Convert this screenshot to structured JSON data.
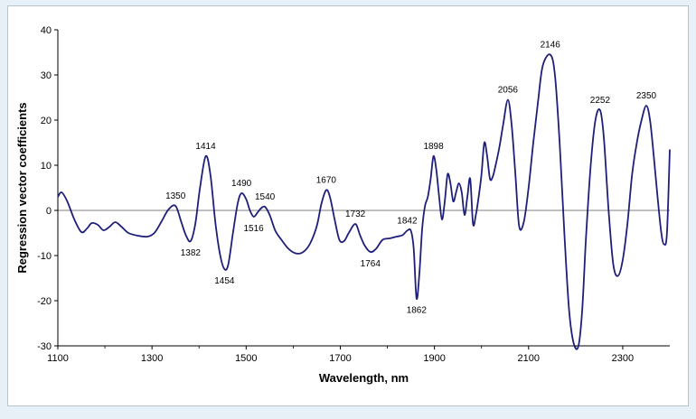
{
  "chart_data": {
    "type": "line",
    "title": "",
    "xlabel": "Wavelength, nm",
    "ylabel": "Regression vector coefficients",
    "xlim": [
      1100,
      2400
    ],
    "ylim": [
      -30,
      40
    ],
    "x_ticks": [
      1100,
      1300,
      1500,
      1700,
      1900,
      2100,
      2300
    ],
    "y_ticks": [
      -30,
      -20,
      -10,
      0,
      10,
      20,
      30,
      40
    ],
    "grid": false,
    "legend": "none",
    "line_color": "#1f1f7a",
    "series": [
      {
        "x": [
          1100,
          1108,
          1120,
          1135,
          1150,
          1162,
          1172,
          1185,
          1197,
          1210,
          1222,
          1235,
          1250,
          1270,
          1290,
          1305,
          1320,
          1335,
          1350,
          1362,
          1372,
          1382,
          1392,
          1402,
          1414,
          1424,
          1435,
          1445,
          1454,
          1462,
          1472,
          1482,
          1490,
          1500,
          1508,
          1516,
          1524,
          1532,
          1540,
          1550,
          1562,
          1575,
          1590,
          1605,
          1620,
          1635,
          1650,
          1660,
          1670,
          1678,
          1688,
          1698,
          1708,
          1718,
          1732,
          1742,
          1752,
          1764,
          1776,
          1790,
          1805,
          1820,
          1832,
          1842,
          1850,
          1856,
          1862,
          1868,
          1874,
          1880,
          1886,
          1892,
          1898,
          1904,
          1910,
          1916,
          1922,
          1928,
          1934,
          1940,
          1946,
          1952,
          1958,
          1964,
          1970,
          1976,
          1982,
          1988,
          1994,
          2000,
          2006,
          2012,
          2018,
          2024,
          2030,
          2038,
          2046,
          2056,
          2064,
          2072,
          2080,
          2090,
          2100,
          2110,
          2120,
          2130,
          2146,
          2156,
          2166,
          2176,
          2186,
          2196,
          2206,
          2214,
          2222,
          2232,
          2242,
          2252,
          2260,
          2270,
          2280,
          2290,
          2300,
          2310,
          2320,
          2330,
          2340,
          2350,
          2358,
          2366,
          2374,
          2382,
          2388,
          2394,
          2400
        ],
        "y": [
          3,
          4,
          2,
          -2,
          -4.8,
          -4,
          -2.8,
          -3.2,
          -4.4,
          -3.6,
          -2.6,
          -3.6,
          -5,
          -5.6,
          -5.8,
          -5,
          -2.5,
          0.2,
          1,
          -2.5,
          -5.5,
          -6.8,
          -3,
          5,
          12,
          8,
          -3,
          -10,
          -13,
          -12,
          -5,
          1.5,
          3.8,
          2.5,
          0,
          -1.4,
          -0.5,
          0.5,
          0.8,
          -1,
          -4.5,
          -6.5,
          -8.5,
          -9.5,
          -9.3,
          -7.5,
          -3.5,
          1.5,
          4.5,
          3,
          -2,
          -6.5,
          -6.8,
          -5,
          -3,
          -5.5,
          -7.8,
          -9.2,
          -8.5,
          -6.5,
          -6.2,
          -5.8,
          -5.5,
          -4.5,
          -4.5,
          -8.5,
          -19.5,
          -14,
          -4,
          1,
          3,
          7,
          12,
          9,
          3,
          -2,
          2,
          8,
          6,
          2,
          4,
          6,
          4,
          -1,
          3,
          7,
          -3,
          -1,
          3,
          8,
          15,
          12,
          7,
          7.5,
          10,
          14,
          19,
          24.5,
          19,
          8,
          -3.5,
          -2.5,
          5,
          15,
          24,
          32,
          34.5,
          30,
          15,
          -5,
          -22,
          -29.5,
          -30,
          -22,
          -6,
          10,
          20,
          22.2,
          16,
          0,
          -12,
          -14.5,
          -11,
          -3,
          8,
          15,
          20,
          23.2,
          20,
          12,
          3,
          -5,
          -7.5,
          -5,
          13.5
        ]
      }
    ],
    "annotations": [
      {
        "label": "1350",
        "x": 1350,
        "y": 1,
        "pos": "above"
      },
      {
        "label": "1382",
        "x": 1382,
        "y": -6.8,
        "pos": "below"
      },
      {
        "label": "1414",
        "x": 1414,
        "y": 12,
        "pos": "above"
      },
      {
        "label": "1454",
        "x": 1454,
        "y": -13,
        "pos": "below"
      },
      {
        "label": "1490",
        "x": 1490,
        "y": 3.8,
        "pos": "above"
      },
      {
        "label": "1516",
        "x": 1516,
        "y": -1.4,
        "pos": "below"
      },
      {
        "label": "1540",
        "x": 1540,
        "y": 0.8,
        "pos": "above"
      },
      {
        "label": "1670",
        "x": 1670,
        "y": 4.5,
        "pos": "above"
      },
      {
        "label": "1732",
        "x": 1732,
        "y": -3,
        "pos": "above"
      },
      {
        "label": "1764",
        "x": 1764,
        "y": -9.2,
        "pos": "below"
      },
      {
        "label": "1842",
        "x": 1842,
        "y": -4.5,
        "pos": "above"
      },
      {
        "label": "1862",
        "x": 1862,
        "y": -19.5,
        "pos": "below"
      },
      {
        "label": "1898",
        "x": 1898,
        "y": 12,
        "pos": "above"
      },
      {
        "label": "2056",
        "x": 2056,
        "y": 24.5,
        "pos": "above"
      },
      {
        "label": "2146",
        "x": 2146,
        "y": 34.5,
        "pos": "above"
      },
      {
        "label": "2252",
        "x": 2252,
        "y": 22.2,
        "pos": "above"
      },
      {
        "label": "2350",
        "x": 2350,
        "y": 23.2,
        "pos": "above"
      }
    ]
  }
}
